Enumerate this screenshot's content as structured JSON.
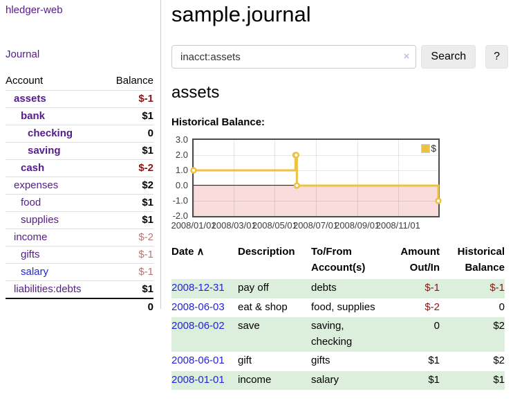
{
  "app": {
    "title": "hledger-web",
    "nav_journal": "Journal"
  },
  "sidebar": {
    "headers": {
      "account": "Account",
      "balance": "Balance"
    },
    "accounts": [
      {
        "name": "assets",
        "balance": "$-1"
      },
      {
        "name": "bank",
        "balance": "$1"
      },
      {
        "name": "checking",
        "balance": "0"
      },
      {
        "name": "saving",
        "balance": "$1"
      },
      {
        "name": "cash",
        "balance": "$-2"
      },
      {
        "name": "expenses",
        "balance": "$2"
      },
      {
        "name": "food",
        "balance": "$1"
      },
      {
        "name": "supplies",
        "balance": "$1"
      },
      {
        "name": "income",
        "balance": "$-2"
      },
      {
        "name": "gifts",
        "balance": "$-1"
      },
      {
        "name": "salary",
        "balance": "$-1"
      },
      {
        "name": "liabilities:debts",
        "balance": "$1"
      }
    ],
    "total": "0"
  },
  "main": {
    "title": "sample.journal",
    "search": {
      "value": "inacct:assets",
      "clear_icon": "×",
      "button": "Search",
      "help_button": "?"
    },
    "account_heading": "assets",
    "chart_label": "Historical Balance:"
  },
  "chart_data": {
    "type": "line",
    "step": true,
    "title": "Historical Balance:",
    "series": [
      {
        "name": "$",
        "color": "#edc240",
        "points": [
          [
            "2008-01-01",
            1
          ],
          [
            "2008-06-01",
            2
          ],
          [
            "2008-06-02",
            2
          ],
          [
            "2008-06-03",
            0
          ],
          [
            "2008-12-31",
            -1
          ]
        ]
      }
    ],
    "x_ticks": [
      "2008/01/01",
      "2008/03/01",
      "2008/05/01",
      "2008/07/01",
      "2008/09/01",
      "2008/11/01"
    ],
    "y_ticks": [
      "3.0",
      "2.0",
      "1.0",
      "0.0",
      "-1.0",
      "-2.0"
    ],
    "xlim": [
      "2008-01-01",
      "2008-12-31"
    ],
    "ylim": [
      -2,
      3
    ],
    "grid": true,
    "legend": {
      "label": "$",
      "position": "top-right"
    },
    "negative_region_color": "#f9dcdc",
    "zero_line_color": "#8b0000"
  },
  "register": {
    "headers": {
      "date": "Date",
      "sort_indicator": "∧",
      "description": "Description",
      "tofrom": "To/From Account(s)",
      "amount": "Amount Out/In",
      "balance": "Historical Balance"
    },
    "rows": [
      {
        "date": "2008-12-31",
        "description": "pay off",
        "accounts": "debts",
        "amount": "$-1",
        "balance": "$-1"
      },
      {
        "date": "2008-06-03",
        "description": "eat & shop",
        "accounts": "food, supplies",
        "amount": "$-2",
        "balance": "0"
      },
      {
        "date": "2008-06-02",
        "description": "save",
        "accounts": "saving, checking",
        "amount": "0",
        "balance": "$2"
      },
      {
        "date": "2008-06-01",
        "description": "gift",
        "accounts": "gifts",
        "amount": "$1",
        "balance": "$2"
      },
      {
        "date": "2008-01-01",
        "description": "income",
        "accounts": "salary",
        "amount": "$1",
        "balance": "$1"
      }
    ]
  },
  "colors": {
    "accent_purple": "#551a8b",
    "link_blue": "#2222dd",
    "negative_strong": "#8b1313",
    "negative_soft": "#b87672",
    "row_green": "#dceedc",
    "series_gold": "#edc240",
    "negative_region": "#f9dcdc",
    "zero_line": "#8b0000"
  }
}
